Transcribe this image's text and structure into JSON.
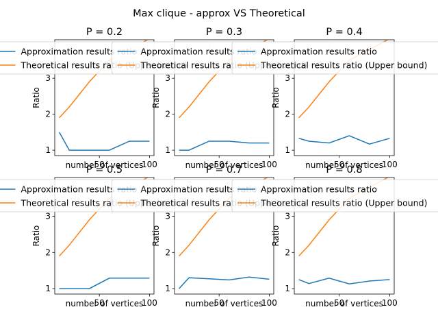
{
  "suptitle": "Max clique  - approx VS Theoretical",
  "colors": {
    "series0": "#1f77b4",
    "series1": "#ff7f0e",
    "axis": "#000000"
  },
  "chart_data": [
    {
      "type": "line",
      "title": "P = 0.2",
      "xlabel": "number of vertices",
      "ylabel": "Ratio",
      "x": [
        10,
        20,
        40,
        60,
        80,
        100
      ],
      "xlim": [
        5.5,
        104.5
      ],
      "ylim": [
        0.85,
        4.07
      ],
      "xticks": [
        50,
        100
      ],
      "yticks": [
        1,
        2,
        3
      ],
      "series": [
        {
          "name": "Approximation results ratio",
          "values": [
            1.5,
            1.0,
            1.0,
            1.0,
            1.25,
            1.25
          ]
        },
        {
          "name": "Theoretical results ratio (Upper bound)",
          "values": [
            1.9,
            2.2,
            2.9,
            3.5,
            3.8,
            4.1
          ]
        }
      ]
    },
    {
      "type": "line",
      "title": "P = 0.3",
      "xlabel": "number of vertices",
      "ylabel": "Ratio",
      "x": [
        10,
        20,
        40,
        60,
        80,
        100
      ],
      "xlim": [
        5.5,
        104.5
      ],
      "ylim": [
        0.85,
        4.07
      ],
      "xticks": [
        50,
        100
      ],
      "yticks": [
        1,
        2,
        3
      ],
      "series": [
        {
          "name": "Approximation results ratio",
          "values": [
            1.0,
            1.0,
            1.25,
            1.25,
            1.2,
            1.2
          ]
        },
        {
          "name": "Theoretical results ratio (Upper bound)",
          "values": [
            1.9,
            2.2,
            2.9,
            3.5,
            3.8,
            4.1
          ]
        }
      ]
    },
    {
      "type": "line",
      "title": "P = 0.4",
      "xlabel": "number of vertices",
      "ylabel": "Ratio",
      "x": [
        10,
        20,
        40,
        60,
        80,
        100
      ],
      "xlim": [
        5.5,
        104.5
      ],
      "ylim": [
        0.85,
        4.07
      ],
      "xticks": [
        50,
        100
      ],
      "yticks": [
        1,
        2,
        3
      ],
      "series": [
        {
          "name": "Approximation results ratio",
          "values": [
            1.33,
            1.25,
            1.2,
            1.4,
            1.17,
            1.33
          ]
        },
        {
          "name": "Theoretical results ratio (Upper bound)",
          "values": [
            1.9,
            2.2,
            2.9,
            3.5,
            3.8,
            4.1
          ]
        }
      ]
    },
    {
      "type": "line",
      "title": "P = 0.5",
      "xlabel": "number of vertices",
      "ylabel": "Ratio",
      "x": [
        10,
        20,
        40,
        60,
        80,
        100
      ],
      "xlim": [
        5.5,
        104.5
      ],
      "ylim": [
        0.85,
        4.07
      ],
      "xticks": [
        50,
        100
      ],
      "yticks": [
        1,
        2,
        3
      ],
      "series": [
        {
          "name": "Approximation results ratio",
          "values": [
            1.0,
            1.0,
            1.0,
            1.29,
            1.29,
            1.29
          ]
        },
        {
          "name": "Theoretical results ratio (Upper bound)",
          "values": [
            1.9,
            2.2,
            2.9,
            3.5,
            3.8,
            4.1
          ]
        }
      ]
    },
    {
      "type": "line",
      "title": "P = 0.7",
      "xlabel": "number of vertices",
      "ylabel": "Ratio",
      "x": [
        10,
        20,
        40,
        60,
        80,
        100
      ],
      "xlim": [
        5.5,
        104.5
      ],
      "ylim": [
        0.85,
        4.07
      ],
      "xticks": [
        50,
        100
      ],
      "yticks": [
        1,
        2,
        3
      ],
      "series": [
        {
          "name": "Approximation results ratio",
          "values": [
            1.0,
            1.3,
            1.27,
            1.24,
            1.32,
            1.26
          ]
        },
        {
          "name": "Theoretical results ratio (Upper bound)",
          "values": [
            1.9,
            2.2,
            2.9,
            3.5,
            3.8,
            4.1
          ]
        }
      ]
    },
    {
      "type": "line",
      "title": "P = 0.8",
      "xlabel": "number of vertices",
      "ylabel": "Ratio",
      "x": [
        10,
        20,
        40,
        60,
        80,
        100
      ],
      "xlim": [
        5.5,
        104.5
      ],
      "ylim": [
        0.85,
        4.07
      ],
      "xticks": [
        50,
        100
      ],
      "yticks": [
        1,
        2,
        3
      ],
      "series": [
        {
          "name": "Approximation results ratio",
          "values": [
            1.25,
            1.14,
            1.29,
            1.13,
            1.21,
            1.25
          ]
        },
        {
          "name": "Theoretical results ratio (Upper bound)",
          "values": [
            1.9,
            2.2,
            2.9,
            3.5,
            3.8,
            4.1
          ]
        }
      ]
    }
  ]
}
